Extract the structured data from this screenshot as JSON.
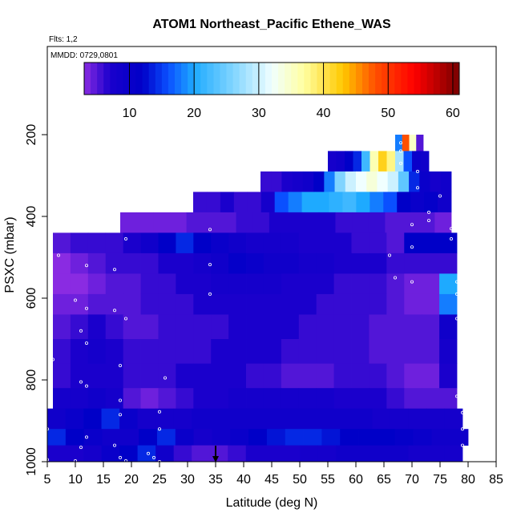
{
  "chart_data": {
    "type": "heatmap",
    "title": "ATOM1 Northeast_Pacific Ethene_WAS",
    "notes": {
      "flights": "Flts: 1,2",
      "dates": "MMDD: 0729,0801"
    },
    "xlabel": "Latitude (deg N)",
    "ylabel": "PSXC (mbar)",
    "xlim": [
      5,
      85
    ],
    "ylim": [
      1000,
      0
    ],
    "x_ticks": [
      5,
      10,
      15,
      20,
      25,
      30,
      35,
      40,
      45,
      50,
      55,
      60,
      65,
      70,
      75,
      80,
      85
    ],
    "y_ticks": [
      200,
      400,
      600,
      800,
      1000
    ],
    "colorbar": {
      "range": [
        3,
        61
      ],
      "ticks": [
        10,
        20,
        30,
        40,
        50,
        60
      ],
      "stops": [
        {
          "v": 3,
          "color": "#8a2be2"
        },
        {
          "v": 7,
          "color": "#1a00cc"
        },
        {
          "v": 12,
          "color": "#0000c8"
        },
        {
          "v": 16,
          "color": "#0a50ff"
        },
        {
          "v": 20,
          "color": "#1eaaff"
        },
        {
          "v": 26,
          "color": "#80d4ff"
        },
        {
          "v": 32,
          "color": "#f0ffff"
        },
        {
          "v": 37,
          "color": "#ffffa0"
        },
        {
          "v": 43,
          "color": "#ffc800"
        },
        {
          "v": 48,
          "color": "#ff5000"
        },
        {
          "v": 54,
          "color": "#ff0000"
        },
        {
          "v": 61,
          "color": "#780000"
        }
      ]
    },
    "marker": {
      "x": 35,
      "y": 1000,
      "label": "arrow"
    },
    "rows": [
      {
        "p": [
          200,
          240
        ],
        "x": [
          67,
          72
        ],
        "values": [
          18,
          48,
          35,
          5
        ]
      },
      {
        "p": [
          240,
          290
        ],
        "x": [
          55,
          73
        ],
        "values": [
          8,
          9,
          12,
          14,
          22,
          36,
          42,
          38,
          28,
          16,
          10,
          9
        ]
      },
      {
        "p": [
          290,
          340
        ],
        "x": [
          43,
          77
        ],
        "values": [
          6,
          6,
          7,
          8,
          9,
          12,
          18,
          26,
          30,
          32,
          34,
          32,
          30,
          24,
          14,
          10,
          8,
          9
        ]
      },
      {
        "p": [
          340,
          390
        ],
        "x": [
          31,
          77
        ],
        "values": [
          6,
          6,
          7,
          6,
          6,
          8,
          16,
          18,
          20,
          20,
          21,
          22,
          20,
          18,
          16,
          12,
          10,
          11,
          9
        ]
      },
      {
        "p": [
          390,
          440
        ],
        "x": [
          18,
          77
        ],
        "values": [
          4,
          4,
          4,
          4,
          5,
          5,
          5,
          6,
          6,
          7,
          7,
          7,
          7,
          6,
          6,
          6,
          5,
          5,
          5,
          4
        ]
      },
      {
        "p": [
          440,
          490
        ],
        "x": [
          6,
          78
        ],
        "values": [
          5,
          6,
          6,
          6,
          7,
          9,
          12,
          14,
          12,
          10,
          9,
          8,
          8,
          8,
          7,
          7,
          7,
          6,
          6,
          5,
          12,
          12,
          12
        ]
      },
      {
        "p": [
          490,
          540
        ],
        "x": [
          6,
          78
        ],
        "values": [
          3,
          4,
          5,
          6,
          6,
          6,
          7,
          7,
          8,
          9,
          11,
          10,
          9,
          9,
          8,
          8,
          7,
          7,
          7,
          6,
          6,
          6,
          6
        ]
      },
      {
        "p": [
          540,
          590
        ],
        "x": [
          6,
          78
        ],
        "values": [
          3,
          3,
          4,
          5,
          5,
          6,
          6,
          7,
          7,
          8,
          8,
          8,
          8,
          7,
          7,
          7,
          6,
          6,
          6,
          5,
          4,
          4,
          20
        ]
      },
      {
        "p": [
          590,
          640
        ],
        "x": [
          6,
          78
        ],
        "values": [
          4,
          4,
          5,
          5,
          5,
          6,
          6,
          6,
          7,
          7,
          7,
          7,
          7,
          7,
          7,
          6,
          6,
          6,
          6,
          5,
          4,
          4,
          18
        ]
      },
      {
        "p": [
          640,
          700
        ],
        "x": [
          6,
          78
        ],
        "values": [
          5,
          6,
          7,
          6,
          5,
          5,
          6,
          6,
          6,
          6,
          7,
          7,
          7,
          7,
          6,
          6,
          6,
          6,
          5,
          5,
          5,
          5,
          9
        ]
      },
      {
        "p": [
          700,
          760
        ],
        "x": [
          6,
          78
        ],
        "values": [
          6,
          7,
          8,
          7,
          6,
          6,
          6,
          6,
          6,
          7,
          7,
          7,
          7,
          6,
          6,
          6,
          6,
          6,
          5,
          5,
          5,
          5,
          8
        ]
      },
      {
        "p": [
          760,
          820
        ],
        "x": [
          6,
          78
        ],
        "values": [
          6,
          7,
          7,
          7,
          6,
          6,
          6,
          7,
          7,
          7,
          7,
          6,
          6,
          5,
          5,
          5,
          6,
          6,
          6,
          5,
          4,
          4,
          7
        ]
      },
      {
        "p": [
          820,
          870
        ],
        "x": [
          6,
          78
        ],
        "values": [
          8,
          8,
          9,
          8,
          5,
          4,
          5,
          6,
          7,
          7,
          8,
          8,
          8,
          8,
          8,
          8,
          7,
          7,
          7,
          6,
          5,
          5,
          5
        ]
      },
      {
        "p": [
          870,
          920
        ],
        "x": [
          5,
          79
        ],
        "values": [
          9,
          10,
          12,
          14,
          10,
          8,
          8,
          8,
          9,
          9,
          9,
          9,
          9,
          9,
          9,
          9,
          9,
          9,
          8,
          8,
          8,
          8,
          8
        ]
      },
      {
        "p": [
          920,
          960
        ],
        "x": [
          5,
          80
        ],
        "values": [
          14,
          12,
          10,
          9,
          9,
          12,
          14,
          10,
          8,
          9,
          10,
          12,
          13,
          14,
          14,
          13,
          12,
          12,
          12,
          11,
          10,
          9,
          9
        ]
      },
      {
        "p": [
          960,
          1000
        ],
        "x": [
          5,
          79
        ],
        "values": [
          7,
          7,
          8,
          10,
          12,
          14,
          9,
          6,
          5,
          5,
          6,
          7,
          7,
          7,
          8,
          8,
          9,
          9,
          9,
          9,
          8,
          8,
          8
        ]
      }
    ],
    "samples": [
      [
        7,
        495
      ],
      [
        19,
        455
      ],
      [
        34,
        432
      ],
      [
        12,
        520
      ],
      [
        17,
        530
      ],
      [
        34,
        518
      ],
      [
        10,
        605
      ],
      [
        12,
        625
      ],
      [
        17,
        630
      ],
      [
        19,
        650
      ],
      [
        34,
        590
      ],
      [
        11,
        680
      ],
      [
        12,
        710
      ],
      [
        18,
        765
      ],
      [
        26,
        795
      ],
      [
        6,
        750
      ],
      [
        11,
        805
      ],
      [
        12,
        815
      ],
      [
        18,
        850
      ],
      [
        25,
        878
      ],
      [
        18,
        885
      ],
      [
        25,
        920
      ],
      [
        5,
        920
      ],
      [
        12,
        940
      ],
      [
        11,
        965
      ],
      [
        17,
        960
      ],
      [
        23,
        980
      ],
      [
        24,
        990
      ],
      [
        25,
        1000
      ],
      [
        18,
        990
      ],
      [
        19,
        998
      ],
      [
        10,
        998
      ],
      [
        5,
        995
      ],
      [
        66,
        495
      ],
      [
        67,
        550
      ],
      [
        70,
        560
      ],
      [
        78,
        560
      ],
      [
        78,
        590
      ],
      [
        78,
        650
      ],
      [
        79,
        790
      ],
      [
        78,
        840
      ],
      [
        79,
        880
      ],
      [
        79,
        920
      ],
      [
        79,
        960
      ],
      [
        68,
        220
      ],
      [
        68,
        240
      ],
      [
        68,
        270
      ],
      [
        71,
        290
      ],
      [
        71,
        330
      ],
      [
        75,
        350
      ],
      [
        73,
        390
      ],
      [
        73,
        410
      ],
      [
        70,
        420
      ],
      [
        77,
        430
      ],
      [
        77,
        455
      ],
      [
        70,
        475
      ]
    ]
  }
}
